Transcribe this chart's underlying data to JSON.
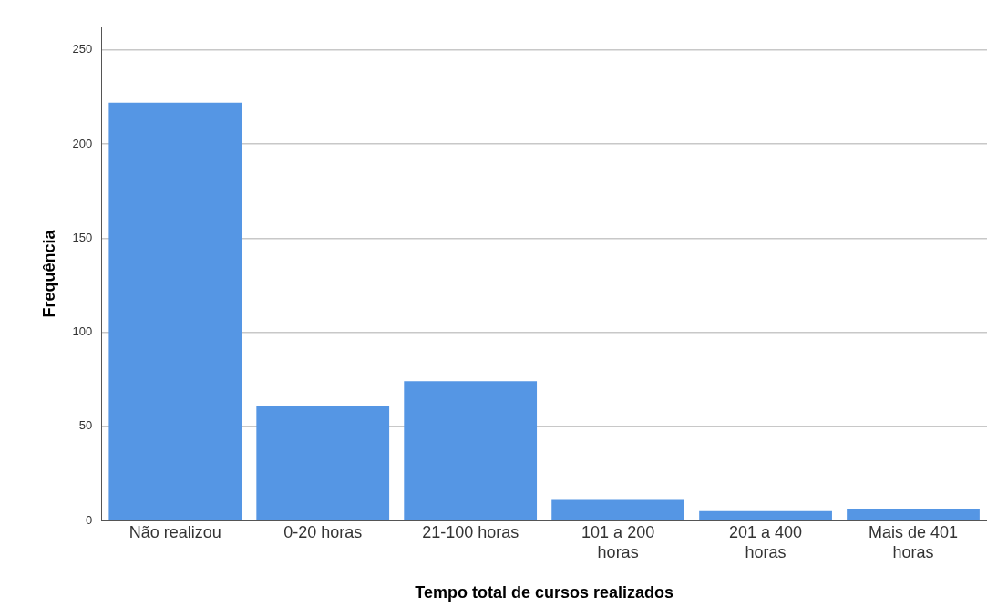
{
  "chart_data": {
    "type": "bar",
    "xlabel": "Tempo total de cursos realizados",
    "ylabel": "Frequência",
    "categories": [
      "Não realizou",
      "0-20 horas",
      "21-100 horas",
      "101 a 200 horas",
      "201 a 400 horas",
      "Mais de 401 horas"
    ],
    "values": [
      222,
      61,
      74,
      11,
      5,
      6
    ],
    "color": "#5596e4",
    "ylim": [
      0,
      262
    ],
    "yticks": [
      0,
      50,
      100,
      150,
      200,
      250
    ],
    "grid": "y",
    "legend": false
  }
}
